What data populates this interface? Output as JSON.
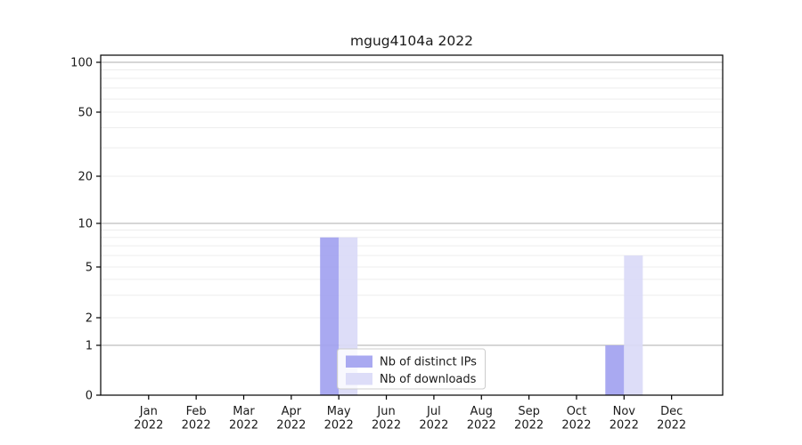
{
  "chart_data": {
    "type": "bar",
    "title": "mgug4104a 2022",
    "categories": [
      "Jan 2022",
      "Feb 2022",
      "Mar 2022",
      "Apr 2022",
      "May 2022",
      "Jun 2022",
      "Jul 2022",
      "Aug 2022",
      "Sep 2022",
      "Oct 2022",
      "Nov 2022",
      "Dec 2022"
    ],
    "series": [
      {
        "name": "Nb of distinct IPs",
        "color": "#a0a0f0",
        "values": [
          0,
          0,
          0,
          0,
          8,
          0,
          0,
          0,
          0,
          0,
          1,
          0
        ]
      },
      {
        "name": "Nb of downloads",
        "color": "#d9d9f7",
        "values": [
          0,
          0,
          0,
          0,
          8,
          0,
          0,
          0,
          0,
          0,
          6,
          0
        ]
      }
    ],
    "xlabel": "",
    "ylabel": "",
    "y_axis": {
      "scale": "log-like",
      "tick_values": [
        0,
        1,
        2,
        5,
        10,
        20,
        50,
        100
      ],
      "tick_labels": [
        "0",
        "1",
        "2",
        "5",
        "10",
        "20",
        "50",
        "100"
      ],
      "major_gridlines": [
        1,
        10,
        100
      ],
      "minor_gridlines": [
        2,
        3,
        4,
        6,
        7,
        8,
        9,
        30,
        40,
        60,
        70,
        80,
        90
      ],
      "ylim": [
        0,
        115
      ]
    },
    "legend": {
      "position": "inside-bottom-center",
      "entries": [
        "Nb of distinct IPs",
        "Nb of downloads"
      ]
    },
    "grid": "horizontal",
    "colors": {
      "major_grid": "#bdbdbd",
      "minor_grid": "#ededed",
      "spine": "#000000",
      "tick_text": "#1a1a1a",
      "legend_border": "#cccccc",
      "legend_background": "rgba(255,255,255,0.8)"
    }
  }
}
